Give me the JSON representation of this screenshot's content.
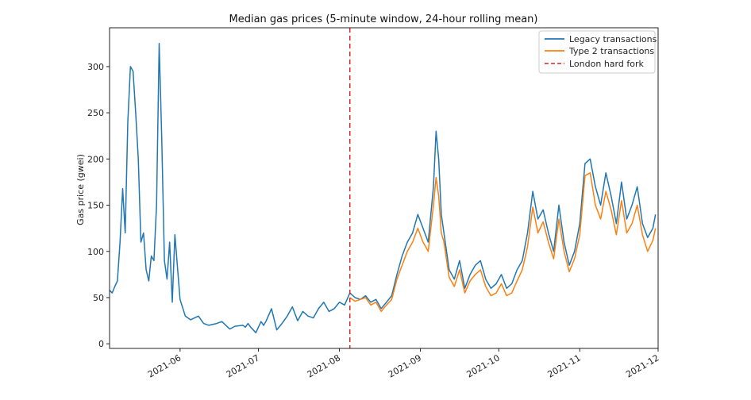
{
  "chart_data": {
    "type": "line",
    "title": "Median gas prices (5-minute window, 24-hour rolling mean)",
    "xlabel": "",
    "ylabel": "Gas price (gwei)",
    "ylim": [
      -5,
      342
    ],
    "xlim": [
      "2021-05-05",
      "2021-12-01"
    ],
    "yticks": [
      0,
      50,
      100,
      150,
      200,
      250,
      300
    ],
    "xticks": [
      "2021-06",
      "2021-07",
      "2021-08",
      "2021-09",
      "2021-10",
      "2021-11",
      "2021-12"
    ],
    "grid": false,
    "legend_position": "top-right",
    "colors": {
      "legacy": "#1f77b4",
      "type2": "#ff7f0e",
      "fork": "#d62728"
    },
    "series": [
      {
        "name": "Legacy transactions",
        "x": [
          "2021-05-05",
          "2021-05-06",
          "2021-05-07",
          "2021-05-08",
          "2021-05-09",
          "2021-05-10",
          "2021-05-11",
          "2021-05-12",
          "2021-05-13",
          "2021-05-14",
          "2021-05-15",
          "2021-05-16",
          "2021-05-17",
          "2021-05-18",
          "2021-05-19",
          "2021-05-20",
          "2021-05-21",
          "2021-05-22",
          "2021-05-23",
          "2021-05-24",
          "2021-05-25",
          "2021-05-26",
          "2021-05-27",
          "2021-05-28",
          "2021-05-29",
          "2021-05-30",
          "2021-06-01",
          "2021-06-03",
          "2021-06-05",
          "2021-06-08",
          "2021-06-10",
          "2021-06-12",
          "2021-06-15",
          "2021-06-17",
          "2021-06-20",
          "2021-06-22",
          "2021-06-25",
          "2021-06-26",
          "2021-06-27",
          "2021-06-28",
          "2021-06-30",
          "2021-07-02",
          "2021-07-03",
          "2021-07-04",
          "2021-07-06",
          "2021-07-08",
          "2021-07-10",
          "2021-07-12",
          "2021-07-14",
          "2021-07-16",
          "2021-07-18",
          "2021-07-20",
          "2021-07-22",
          "2021-07-24",
          "2021-07-26",
          "2021-07-28",
          "2021-07-30",
          "2021-08-01",
          "2021-08-03",
          "2021-08-05",
          "2021-08-07",
          "2021-08-09",
          "2021-08-11",
          "2021-08-13",
          "2021-08-15",
          "2021-08-17",
          "2021-08-19",
          "2021-08-21",
          "2021-08-23",
          "2021-08-25",
          "2021-08-27",
          "2021-08-29",
          "2021-08-31",
          "2021-09-02",
          "2021-09-04",
          "2021-09-06",
          "2021-09-07",
          "2021-09-08",
          "2021-09-09",
          "2021-09-10",
          "2021-09-12",
          "2021-09-14",
          "2021-09-16",
          "2021-09-18",
          "2021-09-20",
          "2021-09-22",
          "2021-09-24",
          "2021-09-26",
          "2021-09-28",
          "2021-09-30",
          "2021-10-02",
          "2021-10-04",
          "2021-10-06",
          "2021-10-08",
          "2021-10-10",
          "2021-10-12",
          "2021-10-14",
          "2021-10-16",
          "2021-10-18",
          "2021-10-20",
          "2021-10-22",
          "2021-10-24",
          "2021-10-26",
          "2021-10-28",
          "2021-10-30",
          "2021-11-01",
          "2021-11-03",
          "2021-11-05",
          "2021-11-07",
          "2021-11-09",
          "2021-11-11",
          "2021-11-13",
          "2021-11-15",
          "2021-11-17",
          "2021-11-19",
          "2021-11-21",
          "2021-11-23",
          "2021-11-25",
          "2021-11-27",
          "2021-11-29",
          "2021-11-30"
        ],
        "values": [
          58,
          55,
          62,
          68,
          110,
          168,
          120,
          240,
          300,
          295,
          250,
          200,
          110,
          120,
          80,
          68,
          95,
          90,
          150,
          325,
          220,
          90,
          70,
          110,
          45,
          118,
          48,
          30,
          26,
          30,
          22,
          20,
          22,
          24,
          16,
          19,
          20,
          18,
          22,
          18,
          12,
          24,
          20,
          25,
          38,
          15,
          22,
          30,
          40,
          25,
          35,
          30,
          28,
          38,
          45,
          35,
          38,
          45,
          42,
          55,
          50,
          48,
          52,
          45,
          48,
          38,
          45,
          52,
          75,
          95,
          110,
          120,
          140,
          125,
          110,
          170,
          230,
          200,
          140,
          120,
          80,
          70,
          90,
          60,
          75,
          85,
          90,
          70,
          60,
          65,
          75,
          60,
          65,
          80,
          90,
          120,
          165,
          135,
          145,
          120,
          100,
          150,
          110,
          85,
          100,
          130,
          195,
          200,
          170,
          150,
          185,
          160,
          130,
          175,
          135,
          150,
          170,
          130,
          115,
          125,
          140
        ]
      },
      {
        "name": "Type 2 transactions",
        "x": [
          "2021-08-05",
          "2021-08-07",
          "2021-08-09",
          "2021-08-11",
          "2021-08-13",
          "2021-08-15",
          "2021-08-17",
          "2021-08-19",
          "2021-08-21",
          "2021-08-23",
          "2021-08-25",
          "2021-08-27",
          "2021-08-29",
          "2021-08-31",
          "2021-09-02",
          "2021-09-04",
          "2021-09-06",
          "2021-09-07",
          "2021-09-08",
          "2021-09-09",
          "2021-09-10",
          "2021-09-12",
          "2021-09-14",
          "2021-09-16",
          "2021-09-18",
          "2021-09-20",
          "2021-09-22",
          "2021-09-24",
          "2021-09-26",
          "2021-09-28",
          "2021-09-30",
          "2021-10-02",
          "2021-10-04",
          "2021-10-06",
          "2021-10-08",
          "2021-10-10",
          "2021-10-12",
          "2021-10-14",
          "2021-10-16",
          "2021-10-18",
          "2021-10-20",
          "2021-10-22",
          "2021-10-24",
          "2021-10-26",
          "2021-10-28",
          "2021-10-30",
          "2021-11-01",
          "2021-11-03",
          "2021-11-05",
          "2021-11-07",
          "2021-11-09",
          "2021-11-11",
          "2021-11-13",
          "2021-11-15",
          "2021-11-17",
          "2021-11-19",
          "2021-11-21",
          "2021-11-23",
          "2021-11-25",
          "2021-11-27",
          "2021-11-29",
          "2021-11-30"
        ],
        "values": [
          50,
          46,
          48,
          50,
          42,
          45,
          35,
          42,
          48,
          70,
          85,
          100,
          110,
          125,
          110,
          100,
          150,
          180,
          160,
          120,
          110,
          72,
          62,
          80,
          55,
          68,
          75,
          80,
          62,
          52,
          55,
          65,
          52,
          55,
          68,
          80,
          105,
          148,
          120,
          132,
          110,
          92,
          135,
          100,
          78,
          92,
          118,
          182,
          185,
          150,
          135,
          165,
          145,
          118,
          155,
          120,
          130,
          150,
          118,
          100,
          112,
          125
        ]
      }
    ],
    "annotations": [
      {
        "type": "vline",
        "x": "2021-08-05",
        "label": "London hard fork"
      }
    ]
  }
}
